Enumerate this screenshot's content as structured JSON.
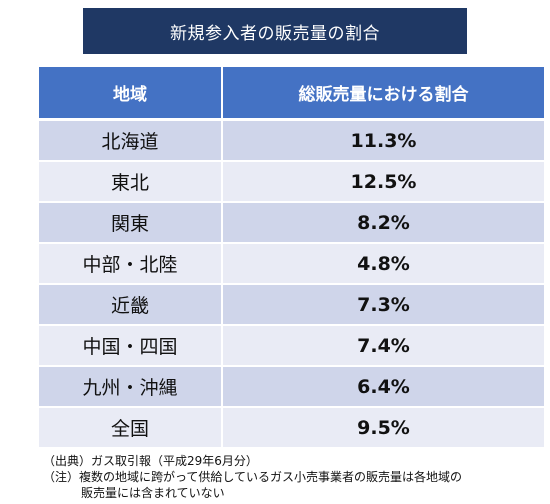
{
  "chart_data": {
    "type": "table",
    "title": "新規参入者の販売量の割合",
    "columns": [
      "地域",
      "総販売量における割合"
    ],
    "rows": [
      {
        "region": "北海道",
        "value": "11.3%"
      },
      {
        "region": "東北",
        "value": "12.5%"
      },
      {
        "region": "関東",
        "value": "8.2%"
      },
      {
        "region": "中部・北陸",
        "value": "4.8%"
      },
      {
        "region": "近畿",
        "value": "7.3%"
      },
      {
        "region": "中国・四国",
        "value": "7.4%"
      },
      {
        "region": "九州・沖縄",
        "value": "6.4%"
      },
      {
        "region": "全国",
        "value": "9.5%"
      }
    ]
  },
  "notes": {
    "source": "（出典）ガス取引報（平成29年6月分）",
    "note_line1": "（注）複数の地域に跨がって供給しているガス小売事業者の販売量は各地域の",
    "note_line2": "販売量には含まれていない"
  },
  "colors": {
    "title_bg": "#1f3864",
    "header_bg": "#4472c4",
    "row_odd": "#cfd5ea",
    "row_even": "#e9ebf5"
  }
}
